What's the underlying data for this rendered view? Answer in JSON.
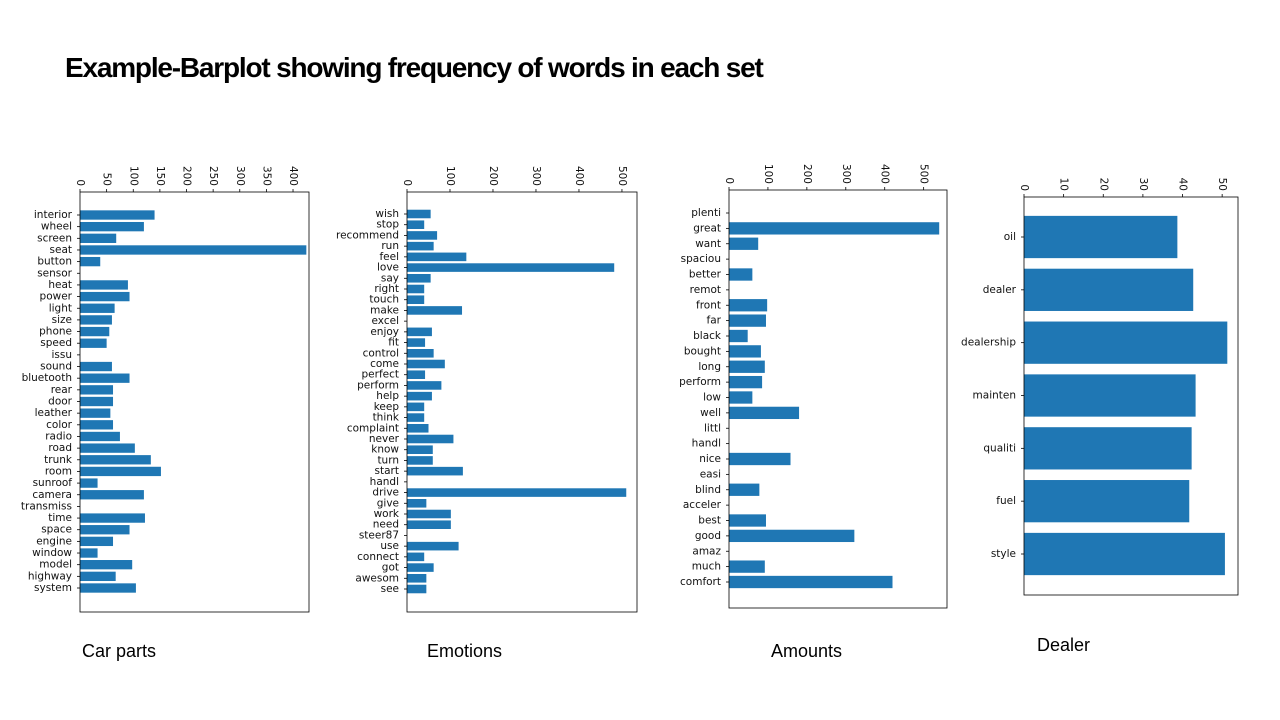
{
  "slide": {
    "title": "Example-Barplot  showing frequency of words in each set",
    "bar_color": "#1f77b4"
  },
  "chart_data": [
    {
      "type": "bar",
      "orientation": "horizontal",
      "caption": "Car parts",
      "xlim": [
        0,
        430
      ],
      "ticks": [
        0,
        50,
        100,
        150,
        200,
        250,
        300,
        350,
        400
      ],
      "tick_labels": [
        "0",
        "50",
        "100",
        "150",
        "200",
        "250",
        "300",
        "350",
        "400"
      ],
      "categories": [
        "interior",
        "wheel",
        "screen",
        "seat",
        "button",
        "sensor",
        "heat",
        "power",
        "light",
        "size",
        "phone",
        "speed",
        "issu",
        "sound",
        "bluetooth",
        "rear",
        "door",
        "leather",
        "color",
        "radio",
        "road",
        "trunk",
        "room",
        "sunroof",
        "camera",
        "transmiss",
        "time",
        "space",
        "engine",
        "window",
        "model",
        "highway",
        "system"
      ],
      "values": [
        140,
        120,
        68,
        425,
        38,
        0,
        90,
        93,
        65,
        60,
        55,
        50,
        0,
        60,
        93,
        62,
        62,
        57,
        62,
        75,
        103,
        133,
        152,
        33,
        120,
        0,
        122,
        93,
        62,
        33,
        98,
        67,
        105
      ]
    },
    {
      "type": "bar",
      "orientation": "horizontal",
      "caption": "Emotions",
      "xlim": [
        0,
        535
      ],
      "ticks": [
        0,
        100,
        200,
        300,
        400,
        500
      ],
      "tick_labels": [
        "0",
        "100",
        "200",
        "300",
        "400",
        "500"
      ],
      "categories": [
        "wish",
        "stop",
        "recommend",
        "run",
        "feel",
        "love",
        "say",
        "right",
        "touch",
        "make",
        "excel",
        "enjoy",
        "fit",
        "control",
        "come",
        "perfect",
        "perform",
        "help",
        "keep",
        "think",
        "complaint",
        "never",
        "know",
        "turn",
        "start",
        "handl",
        "drive",
        "give",
        "work",
        "need",
        "steer87",
        "use",
        "connect",
        "got",
        "awesom",
        "see"
      ],
      "values": [
        55,
        40,
        70,
        62,
        138,
        482,
        55,
        40,
        40,
        128,
        0,
        58,
        42,
        62,
        88,
        42,
        80,
        58,
        40,
        40,
        50,
        108,
        60,
        60,
        130,
        0,
        510,
        45,
        102,
        102,
        0,
        120,
        40,
        62,
        45,
        45
      ]
    },
    {
      "type": "bar",
      "orientation": "horizontal",
      "caption": "Amounts",
      "xlim": [
        0,
        560
      ],
      "ticks": [
        0,
        100,
        200,
        300,
        400,
        500
      ],
      "tick_labels": [
        "0",
        "100",
        "200",
        "300",
        "400",
        "500"
      ],
      "categories": [
        "plenti",
        "great",
        "want",
        "spaciou",
        "better",
        "remot",
        "front",
        "far",
        "black",
        "bought",
        "long",
        "perform",
        "low",
        "well",
        "littl",
        "handl",
        "nice",
        "easi",
        "blind",
        "acceler",
        "best",
        "good",
        "amaz",
        "much",
        "comfort"
      ],
      "values": [
        0,
        540,
        75,
        0,
        60,
        0,
        98,
        95,
        48,
        82,
        92,
        85,
        60,
        180,
        0,
        0,
        158,
        0,
        78,
        0,
        95,
        322,
        0,
        92,
        420
      ]
    },
    {
      "type": "bar",
      "orientation": "horizontal",
      "caption": "Dealer",
      "xlim": [
        0,
        54
      ],
      "ticks": [
        0,
        10,
        20,
        30,
        40,
        50
      ],
      "tick_labels": [
        "0",
        "10",
        "20",
        "30",
        "40",
        "50"
      ],
      "categories": [
        "oil",
        "dealer",
        "dealership",
        "mainten",
        "qualiti",
        "fuel",
        "style"
      ],
      "values": [
        38.7,
        42.7,
        51.3,
        43.3,
        42.3,
        41.7,
        50.7
      ]
    }
  ]
}
